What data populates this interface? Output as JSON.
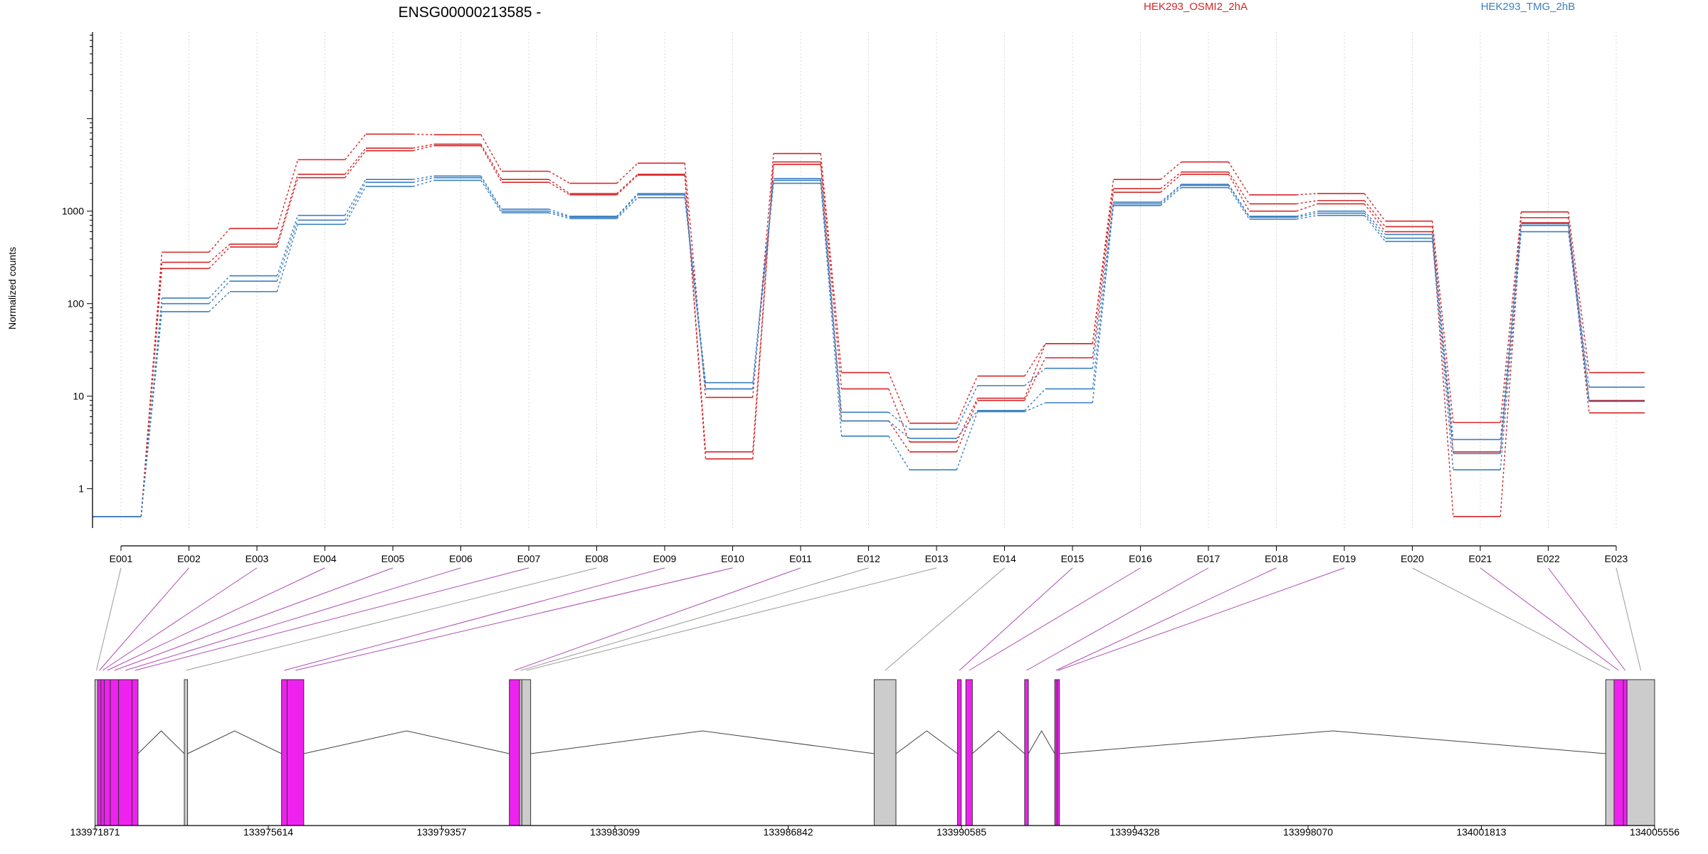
{
  "chart_data": {
    "type": "line",
    "title": "ENSG00000213585 -",
    "ylabel": "Normalized counts",
    "yscale": "log",
    "yticks": [
      1,
      10,
      100,
      1000
    ],
    "ytick_labels": [
      "1",
      "10",
      "100",
      "1000"
    ],
    "grid": "vertical-dotted",
    "legend_position": "top",
    "categories": [
      "E001",
      "E002",
      "E003",
      "E004",
      "E005",
      "E006",
      "E007",
      "E008",
      "E009",
      "E010",
      "E011",
      "E012",
      "E013",
      "E014",
      "E015",
      "E016",
      "E017",
      "E018",
      "E019",
      "E020",
      "E021",
      "E022",
      "E023"
    ],
    "series": [
      {
        "name": "HEK293_OSMI2_2hA",
        "group": "HEK293_OSMI2_2hA",
        "color": "#d62728",
        "values": [
          0.5,
          360,
          650,
          3600,
          6800,
          6700,
          2700,
          2000,
          3300,
          9.7,
          4200,
          18,
          5.1,
          16.5,
          37,
          2200,
          3400,
          1500,
          1550,
          780,
          5.2,
          980,
          18
        ]
      },
      {
        "name": "HEK293_OSMI2_2hA",
        "group": "HEK293_OSMI2_2hA",
        "color": "#d62728",
        "values": [
          0.5,
          280,
          440,
          2500,
          4800,
          5300,
          2200,
          1550,
          2500,
          2.5,
          3400,
          12,
          3.2,
          9.5,
          37,
          1750,
          2650,
          1200,
          1300,
          680,
          2.5,
          850,
          9.0
        ]
      },
      {
        "name": "HEK293_OSMI2_2hA",
        "group": "HEK293_OSMI2_2hA",
        "color": "#d62728",
        "values": [
          0.5,
          240,
          410,
          2300,
          4500,
          5100,
          2050,
          1500,
          2450,
          2.1,
          3200,
          5.4,
          2.5,
          9.0,
          26,
          1600,
          2500,
          1000,
          1200,
          600,
          0.5,
          750,
          6.6
        ]
      },
      {
        "name": "HEK293_TMG_2hB",
        "group": "HEK293_TMG_2hB",
        "color": "#3a7fc1",
        "values": [
          0.5,
          115,
          200,
          900,
          2200,
          2400,
          1050,
          880,
          1550,
          14,
          2250,
          6.7,
          4.4,
          13,
          20,
          1250,
          1950,
          880,
          1000,
          560,
          3.4,
          730,
          12.5
        ]
      },
      {
        "name": "HEK293_TMG_2hB",
        "group": "HEK293_TMG_2hB",
        "color": "#3a7fc1",
        "values": [
          0.5,
          100,
          175,
          800,
          2050,
          2300,
          1000,
          860,
          1500,
          12,
          2150,
          5.4,
          3.5,
          7.0,
          12,
          1200,
          1900,
          860,
          950,
          510,
          2.4,
          700,
          8.8
        ]
      },
      {
        "name": "HEK293_TMG_2hB",
        "group": "HEK293_TMG_2hB",
        "color": "#3a7fc1",
        "values": [
          0.5,
          82,
          135,
          720,
          1850,
          2150,
          960,
          830,
          1400,
          12,
          2000,
          3.7,
          1.6,
          6.8,
          8.5,
          1150,
          1800,
          820,
          900,
          470,
          1.6,
          600,
          8.8
        ]
      }
    ],
    "legend": [
      {
        "label": "HEK293_OSMI2_2hA",
        "color": "#d62728"
      },
      {
        "label": "HEK293_TMG_2hB",
        "color": "#3a7fc1"
      }
    ],
    "gene_model": {
      "coordinate_ticks": [
        "133971871",
        "133975614",
        "133979357",
        "133983099",
        "133986842",
        "133990585",
        "133994328",
        "133998070",
        "134001813",
        "134005556"
      ],
      "xlim": [
        133971871,
        134005556
      ],
      "exon_fill_differential": "#ee22ee",
      "exon_fill_normal": "#cccccc",
      "bins": [
        {
          "id": "E001",
          "start": 133971871,
          "end": 133971930,
          "differential": false
        },
        {
          "id": "E002",
          "start": 133971930,
          "end": 133972000,
          "differential": true
        },
        {
          "id": "E003",
          "start": 133972000,
          "end": 133972070,
          "differential": true
        },
        {
          "id": "E004",
          "start": 133972070,
          "end": 133972200,
          "differential": true
        },
        {
          "id": "E005",
          "start": 133972200,
          "end": 133972380,
          "differential": true
        },
        {
          "id": "E006",
          "start": 133972380,
          "end": 133972670,
          "differential": true
        },
        {
          "id": "E007",
          "start": 133972670,
          "end": 133972800,
          "differential": true
        },
        {
          "id": "E008",
          "start": 133973800,
          "end": 133973870,
          "differential": false
        },
        {
          "id": "E009",
          "start": 133975900,
          "end": 133976020,
          "differential": true
        },
        {
          "id": "E010",
          "start": 133976020,
          "end": 133976380,
          "differential": true
        },
        {
          "id": "E011",
          "start": 133980820,
          "end": 133981040,
          "differential": true
        },
        {
          "id": "E012",
          "start": 133981040,
          "end": 133981090,
          "differential": false
        },
        {
          "id": "E013",
          "start": 133981090,
          "end": 133981280,
          "differential": false
        },
        {
          "id": "E014",
          "start": 133988700,
          "end": 133989170,
          "differential": false
        },
        {
          "id": "E015",
          "start": 133990500,
          "end": 133990580,
          "differential": true
        },
        {
          "id": "E016",
          "start": 133990680,
          "end": 133990820,
          "differential": true
        },
        {
          "id": "E017",
          "start": 133991950,
          "end": 133992030,
          "differential": true
        },
        {
          "id": "E018",
          "start": 133992600,
          "end": 133992650,
          "differential": true
        },
        {
          "id": "E019",
          "start": 133992650,
          "end": 133992700,
          "differential": true
        },
        {
          "id": "E020",
          "start": 134004500,
          "end": 134004680,
          "differential": false
        },
        {
          "id": "E021",
          "start": 134004680,
          "end": 134004880,
          "differential": true
        },
        {
          "id": "E022",
          "start": 134004880,
          "end": 134004960,
          "differential": true
        },
        {
          "id": "E023",
          "start": 134004960,
          "end": 134005556,
          "differential": false
        }
      ],
      "introns": [
        [
          133972800,
          133973800
        ],
        [
          133973870,
          133975900
        ],
        [
          133976380,
          133980820
        ],
        [
          133981280,
          133988700
        ],
        [
          133989170,
          133990500
        ],
        [
          133990820,
          133991950
        ],
        [
          133992030,
          133992600
        ],
        [
          133992700,
          134004500
        ]
      ]
    }
  }
}
